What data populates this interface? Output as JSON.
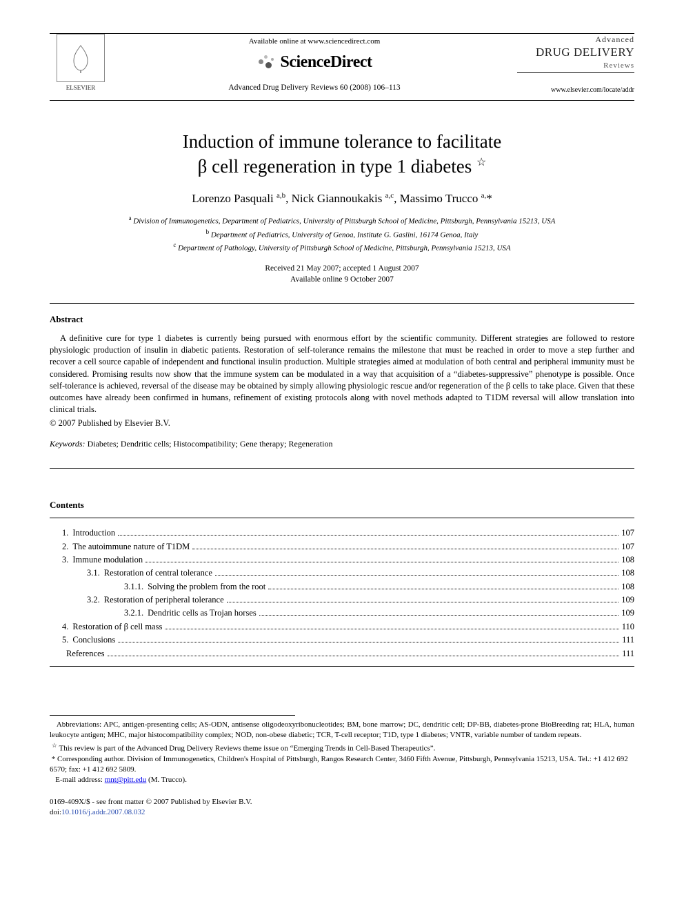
{
  "header": {
    "publisher_name": "ELSEVIER",
    "available_text": "Available online at www.sciencedirect.com",
    "sd_brand": "ScienceDirect",
    "journal_reference": "Advanced Drug Delivery Reviews 60 (2008) 106–113",
    "journal_brand_line1": "Advanced",
    "journal_brand_line2": "DRUG DELIVERY",
    "journal_brand_line3": "Reviews",
    "journal_url": "www.elsevier.com/locate/addr"
  },
  "article": {
    "title_line1": "Induction of immune tolerance to facilitate",
    "title_line2": "β cell regeneration in type 1 diabetes",
    "title_marker": "☆",
    "authors_html": "Lorenzo Pasquali <sup>a,b</sup>, Nick Giannoukakis <sup>a,c</sup>, Massimo Trucco <sup>a,</sup>*",
    "affiliations": {
      "a": "Division of Immunogenetics, Department of Pediatrics, University of Pittsburgh School of Medicine, Pittsburgh, Pennsylvania 15213, USA",
      "b": "Department of Pediatrics, University of Genoa, Institute G. Gaslini, 16174 Genoa, Italy",
      "c": "Department of Pathology, University of Pittsburgh School of Medicine, Pittsburgh, Pennsylvania 15213, USA"
    },
    "received": "Received 21 May 2007; accepted 1 August 2007",
    "available": "Available online 9 October 2007"
  },
  "abstract": {
    "heading": "Abstract",
    "body": "A definitive cure for type 1 diabetes is currently being pursued with enormous effort by the scientific community. Different strategies are followed to restore physiologic production of insulin in diabetic patients. Restoration of self-tolerance remains the milestone that must be reached in order to move a step further and recover a cell source capable of independent and functional insulin production. Multiple strategies aimed at modulation of both central and peripheral immunity must be considered. Promising results now show that the immune system can be modulated in a way that acquisition of a “diabetes-suppressive” phenotype is possible. Once self-tolerance is achieved, reversal of the disease may be obtained by simply allowing physiologic rescue and/or regeneration of the β cells to take place. Given that these outcomes have already been confirmed in humans, refinement of existing protocols along with novel methods adapted to T1DM reversal will allow translation into clinical trials.",
    "copyright": "© 2007 Published by Elsevier B.V.",
    "keywords_label": "Keywords:",
    "keywords": "Diabetes; Dendritic cells; Histocompatibility; Gene therapy; Regeneration"
  },
  "contents": {
    "heading": "Contents",
    "items": [
      {
        "num": "1.",
        "title": "Introduction",
        "page": "107",
        "indent": 1
      },
      {
        "num": "2.",
        "title": "The autoimmune nature of T1DM",
        "page": "107",
        "indent": 1
      },
      {
        "num": "3.",
        "title": "Immune modulation",
        "page": "108",
        "indent": 1
      },
      {
        "num": "3.1.",
        "title": "Restoration of central tolerance",
        "page": "108",
        "indent": 2
      },
      {
        "num": "3.1.1.",
        "title": "Solving the problem from the root",
        "page": "108",
        "indent": 3
      },
      {
        "num": "3.2.",
        "title": "Restoration of peripheral tolerance",
        "page": "109",
        "indent": 2
      },
      {
        "num": "3.2.1.",
        "title": "Dendritic cells as Trojan horses",
        "page": "109",
        "indent": 3
      },
      {
        "num": "4.",
        "title": "Restoration of β cell mass",
        "page": "110",
        "indent": 1
      },
      {
        "num": "5.",
        "title": "Conclusions",
        "page": "111",
        "indent": 1
      },
      {
        "num": "",
        "title": "References",
        "page": "111",
        "indent": 1
      }
    ]
  },
  "footnotes": {
    "abbrev_label": "Abbreviations:",
    "abbrev_text": "APC, antigen-presenting cells; AS-ODN, antisense oligodeoxyribonucleotides; BM, bone marrow; DC, dendritic cell; DP-BB, diabetes-prone BioBreeding rat; HLA, human leukocyte antigen; MHC, major histocompatibility complex; NOD, non-obese diabetic; TCR, T-cell receptor; T1D, type 1 diabetes; VNTR, variable number of tandem repeats.",
    "star_note": "This review is part of the Advanced Drug Delivery Reviews theme issue on “Emerging Trends in Cell-Based Therapeutics”.",
    "corresponding": "Corresponding author. Division of Immunogenetics, Children's Hospital of Pittsburgh, Rangos Research Center, 3460 Fifth Avenue, Pittsburgh, Pennsylvania 15213, USA. Tel.: +1 412 692 6570; fax: +1 412 692 5809.",
    "email_label": "E-mail address:",
    "email": "mnt@pitt.edu",
    "email_suffix": "(M. Trucco)."
  },
  "footer": {
    "front_matter": "0169-409X/$ - see front matter © 2007 Published by Elsevier B.V.",
    "doi_label": "doi:",
    "doi": "10.1016/j.addr.2007.08.032"
  },
  "colors": {
    "text": "#000000",
    "background": "#ffffff",
    "link": "#2a4db0",
    "rule": "#000000",
    "logo_gray": "#888888"
  },
  "typography": {
    "body_family": "Times New Roman",
    "title_size_pt": 20,
    "author_size_pt": 13,
    "body_size_pt": 9.5,
    "footnote_size_pt": 8
  }
}
